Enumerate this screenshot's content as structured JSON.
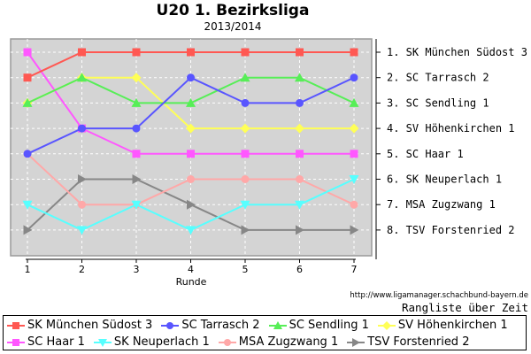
{
  "header": {
    "title": "U20 1. Bezirksliga",
    "subtitle": "2013/2014"
  },
  "chart_data": {
    "type": "line",
    "x": [
      1,
      2,
      3,
      4,
      5,
      6,
      7
    ],
    "xlabel": "Runde",
    "ylabel": "",
    "y_meaning": "league rank per round, 1 = top",
    "ylim": [
      1,
      8
    ],
    "grid": true,
    "plot_bg": "#d4d4d4",
    "grid_color": "#ffffff",
    "legend_position": "bottom",
    "series": [
      {
        "name": "SK München Südost 3",
        "color": "#ff5852",
        "marker": "square",
        "values": [
          2,
          1,
          1,
          1,
          1,
          1,
          1
        ]
      },
      {
        "name": "SC Tarrasch 2",
        "color": "#5955ff",
        "marker": "circle",
        "values": [
          5,
          4,
          4,
          2,
          3,
          3,
          2
        ]
      },
      {
        "name": "SC Sendling 1",
        "color": "#57ee57",
        "marker": "triangle-up",
        "values": [
          3,
          2,
          3,
          3,
          2,
          2,
          3
        ]
      },
      {
        "name": "SV Höhenkirchen 1",
        "color": "#ffff57",
        "marker": "diamond",
        "values": [
          3,
          2,
          2,
          4,
          4,
          4,
          4
        ]
      },
      {
        "name": "SC Haar 1",
        "color": "#ff57ff",
        "marker": "square",
        "values": [
          1,
          4,
          5,
          5,
          5,
          5,
          5
        ]
      },
      {
        "name": "SK Neuperlach 1",
        "color": "#57ffff",
        "marker": "triangle-down",
        "values": [
          7,
          8,
          7,
          8,
          7,
          7,
          6
        ]
      },
      {
        "name": "MSA Zugzwang 1",
        "color": "#ffa8a8",
        "marker": "circle",
        "values": [
          5,
          7,
          7,
          6,
          6,
          6,
          7
        ]
      },
      {
        "name": "TSV Forstenried 2",
        "color": "#878787",
        "marker": "triangle-right",
        "values": [
          8,
          6,
          6,
          7,
          8,
          8,
          8
        ]
      }
    ],
    "right_labels": [
      "1. SK München Südost 3",
      "2. SC Tarrasch 2",
      "3. SC Sendling 1",
      "4. SV Höhenkirchen 1",
      "5. SC Haar 1",
      "6. SK Neuperlach 1",
      "7. MSA Zugzwang 1",
      "8. TSV Forstenried 2"
    ]
  },
  "footer": {
    "url": "http://www.ligamanager.schachbund-bayern.de",
    "caption": "Rangliste über Zeit"
  }
}
